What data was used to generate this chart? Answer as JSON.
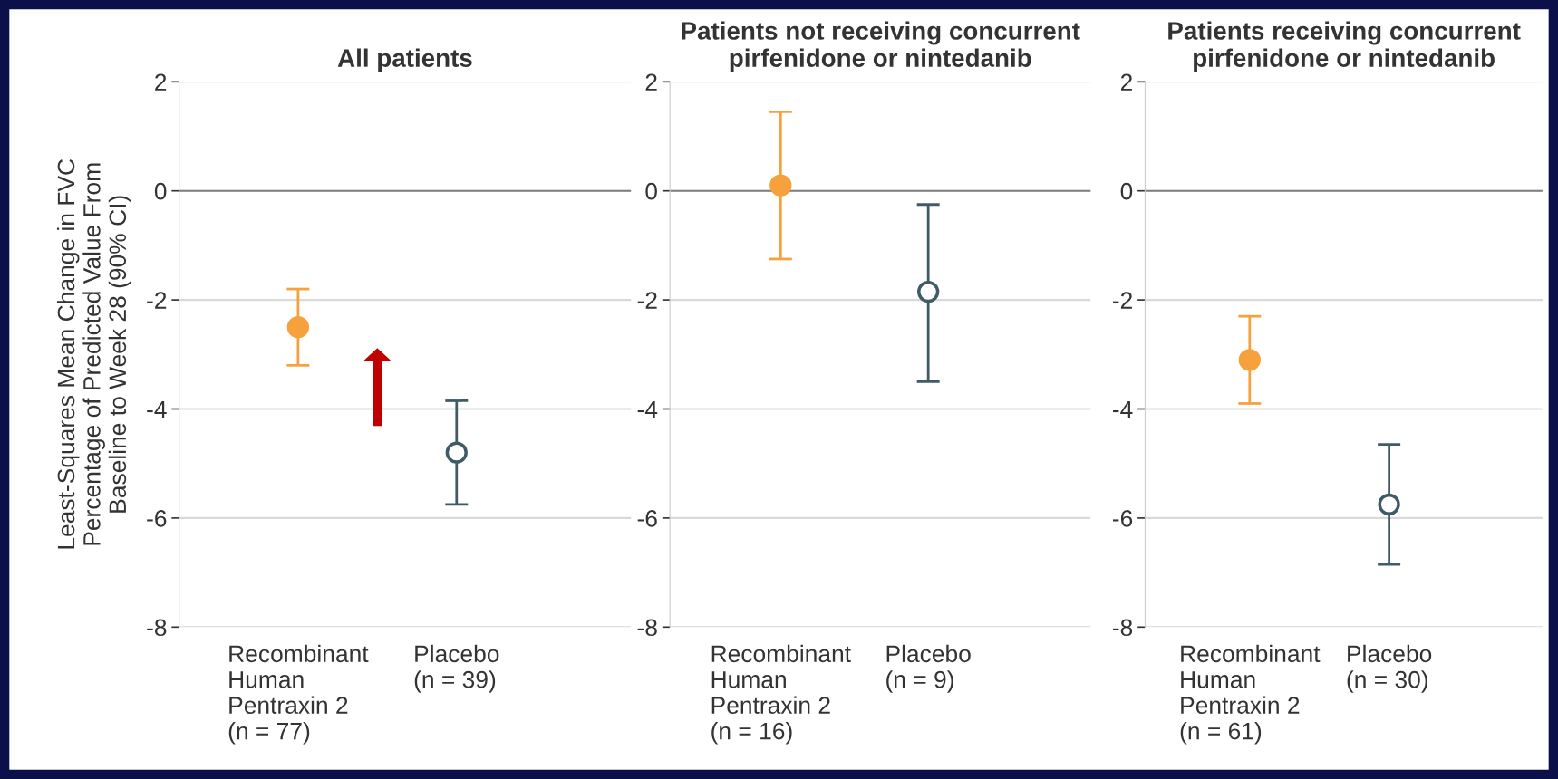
{
  "chart_data": [
    {
      "type": "scatter",
      "title": "All patients",
      "ylabel": "Least-Squares Mean Change in FVC\nPercentage of Predicted Value From\nBaseline to Week 28 (90% CI)",
      "categories": [
        "Recombinant\nHuman\nPentraxin 2\n(n = 77)",
        "Placebo\n(n = 39)"
      ],
      "ylim": [
        -8,
        2
      ],
      "yticks": [
        -8,
        -6,
        -4,
        -2,
        0,
        2
      ],
      "grid": "y",
      "marker": "circle",
      "ref_lines": [
        {
          "axis": "y",
          "value": 0,
          "color": "#7f7f7f"
        }
      ],
      "series": [
        {
          "color": "#f7a13d",
          "values": [
            -2.5,
            null
          ],
          "errors": [
            [
              -3.2,
              -1.8
            ],
            null
          ]
        },
        {
          "color": "#3f5b66",
          "values": [
            null,
            -4.8
          ],
          "errors": [
            null,
            [
              -5.75,
              -3.85
            ]
          ]
        }
      ]
    },
    {
      "type": "scatter",
      "title": "Patients not receiving concurrent\npirfenidone or nintedanib",
      "categories": [
        "Recombinant\nHuman\nPentraxin 2\n(n = 16)",
        "Placebo\n(n = 9)"
      ],
      "ylim": [
        -8,
        2
      ],
      "yticks": [
        -8,
        -6,
        -4,
        -2,
        0,
        2
      ],
      "grid": "y",
      "marker": "circle",
      "ref_lines": [
        {
          "axis": "y",
          "value": 0,
          "color": "#7f7f7f"
        }
      ],
      "series": [
        {
          "color": "#f7a13d",
          "values": [
            0.1,
            null
          ],
          "errors": [
            [
              -1.25,
              1.45
            ],
            null
          ]
        },
        {
          "color": "#3f5b66",
          "values": [
            null,
            -1.85
          ],
          "errors": [
            null,
            [
              -3.5,
              -0.25
            ]
          ]
        }
      ]
    },
    {
      "type": "scatter",
      "title": "Patients receiving concurrent\npirfenidone or nintedanib",
      "categories": [
        "Recombinant\nHuman\nPentraxin 2\n(n = 61)",
        "Placebo\n(n = 30)"
      ],
      "ylim": [
        -8,
        2
      ],
      "yticks": [
        -8,
        -6,
        -4,
        -2,
        0,
        2
      ],
      "grid": "y",
      "marker": "circle",
      "ref_lines": [
        {
          "axis": "y",
          "value": 0,
          "color": "#7f7f7f"
        }
      ],
      "series": [
        {
          "color": "#f7a13d",
          "values": [
            -3.1,
            null
          ],
          "errors": [
            [
              -3.9,
              -2.3
            ],
            null
          ]
        },
        {
          "color": "#3f5b66",
          "values": [
            null,
            -5.75
          ],
          "errors": [
            null,
            [
              -6.85,
              -4.65
            ]
          ]
        }
      ]
    }
  ]
}
